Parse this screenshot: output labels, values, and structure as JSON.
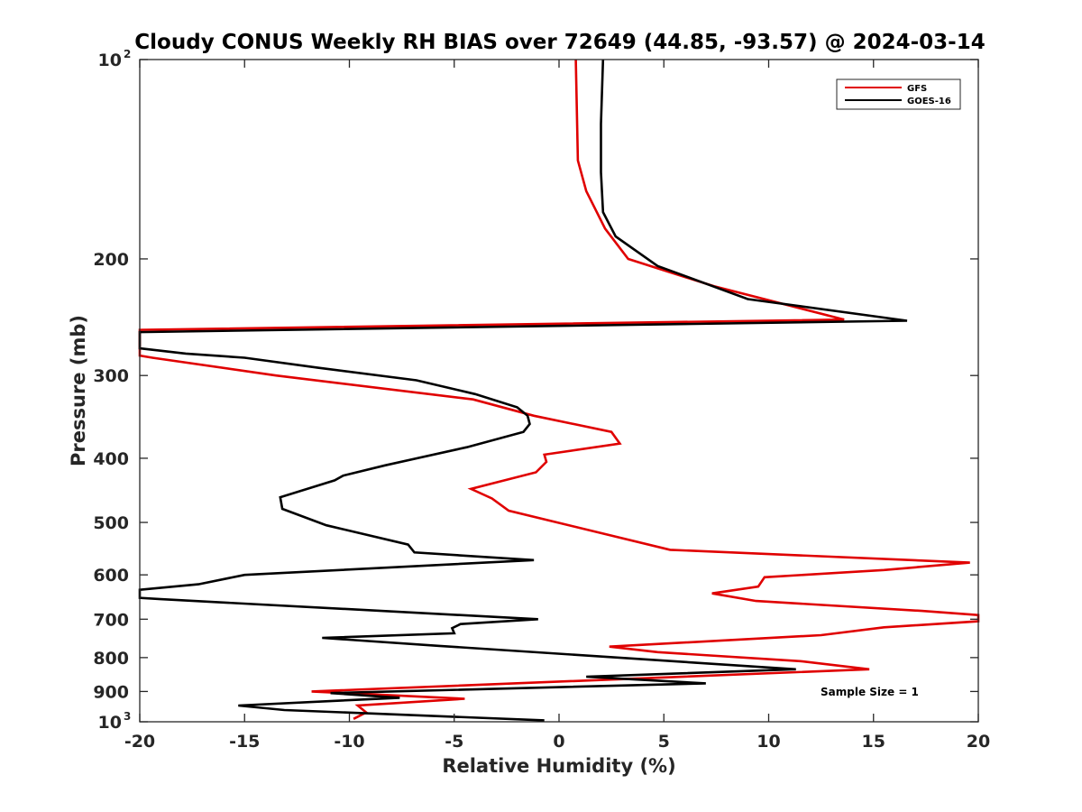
{
  "chart_data": {
    "type": "line",
    "title": "Cloudy CONUS Weekly RH BIAS over 72649 (44.85, -93.57) @ 2024-03-14",
    "xlabel": "Relative Humidity (%)",
    "ylabel": "Pressure (mb)",
    "xlim": [
      -20,
      20
    ],
    "ylim": [
      100,
      1000
    ],
    "y_scale": "log",
    "y_reversed": true,
    "grid": false,
    "legend_position": "top-right",
    "x_ticks": [
      "-20",
      "-15",
      "-10",
      "-5",
      "0",
      "5",
      "10",
      "15",
      "20"
    ],
    "y_ticks": [
      {
        "base": "10",
        "exp": "2"
      },
      {
        "base": "200",
        "exp": ""
      },
      {
        "base": "300",
        "exp": ""
      },
      {
        "base": "400",
        "exp": ""
      },
      {
        "base": "500",
        "exp": ""
      },
      {
        "base": "600",
        "exp": ""
      },
      {
        "base": "700",
        "exp": ""
      },
      {
        "base": "800",
        "exp": ""
      },
      {
        "base": "900",
        "exp": ""
      },
      {
        "base": "10",
        "exp": "3"
      }
    ],
    "annotation": "Sample Size = 1",
    "series": [
      {
        "name": "GFS",
        "color": "#e00000",
        "points": [
          [
            0.8,
            100
          ],
          [
            0.9,
            142
          ],
          [
            1.3,
            158
          ],
          [
            2.2,
            180
          ],
          [
            3.3,
            200
          ],
          [
            7.4,
            220
          ],
          [
            13.6,
            247
          ],
          [
            -20,
            256
          ],
          [
            -20,
            280
          ],
          [
            -19.4,
            282
          ],
          [
            -13.5,
            300
          ],
          [
            -4.1,
            326
          ],
          [
            -1.2,
            345
          ],
          [
            2.5,
            365
          ],
          [
            2.9,
            380
          ],
          [
            -0.7,
            395
          ],
          [
            -0.6,
            405
          ],
          [
            -1.1,
            420
          ],
          [
            -4.2,
            445
          ],
          [
            -3.2,
            460
          ],
          [
            -2.4,
            480
          ],
          [
            5.3,
            550
          ],
          [
            19.6,
            575
          ],
          [
            15.5,
            590
          ],
          [
            9.8,
            605
          ],
          [
            9.5,
            625
          ],
          [
            7.3,
            640
          ],
          [
            9.4,
            657
          ],
          [
            17.3,
            680
          ],
          [
            20,
            690
          ],
          [
            20,
            705
          ],
          [
            15.5,
            720
          ],
          [
            12.5,
            740
          ],
          [
            2.4,
            770
          ],
          [
            4.7,
            785
          ],
          [
            11.5,
            810
          ],
          [
            14.8,
            833
          ],
          [
            -11.8,
            900
          ],
          [
            -4.5,
            923
          ],
          [
            -9.6,
            945
          ],
          [
            -9.2,
            968
          ],
          [
            -9.8,
            990
          ]
        ]
      },
      {
        "name": "GOES-16",
        "color": "#000000",
        "points": [
          [
            2.1,
            100
          ],
          [
            2.0,
            125
          ],
          [
            2.0,
            148
          ],
          [
            2.1,
            170
          ],
          [
            2.7,
            185
          ],
          [
            4.7,
            205
          ],
          [
            9.0,
            230
          ],
          [
            16.6,
            248
          ],
          [
            -20,
            258
          ],
          [
            -20,
            273
          ],
          [
            -17.8,
            278
          ],
          [
            -15.0,
            282
          ],
          [
            -11.5,
            292
          ],
          [
            -6.8,
            305
          ],
          [
            -4.0,
            320
          ],
          [
            -2.0,
            335
          ],
          [
            -1.5,
            345
          ],
          [
            -1.4,
            355
          ],
          [
            -1.7,
            365
          ],
          [
            -4.4,
            385
          ],
          [
            -8.3,
            410
          ],
          [
            -10.3,
            425
          ],
          [
            -10.7,
            432
          ],
          [
            -13.3,
            458
          ],
          [
            -13.2,
            477
          ],
          [
            -11.1,
            505
          ],
          [
            -7.2,
            540
          ],
          [
            -6.9,
            555
          ],
          [
            -1.2,
            570
          ],
          [
            -15.0,
            600
          ],
          [
            -17.2,
            620
          ],
          [
            -20,
            632
          ],
          [
            -20,
            650
          ],
          [
            -19.0,
            653
          ],
          [
            -1.0,
            700
          ],
          [
            -4.7,
            712
          ],
          [
            -5.1,
            722
          ],
          [
            -5.0,
            735
          ],
          [
            -11.3,
            747
          ],
          [
            -5.7,
            768
          ],
          [
            11.3,
            833
          ],
          [
            1.3,
            855
          ],
          [
            7.0,
            875
          ],
          [
            -10.9,
            905
          ],
          [
            -7.6,
            920
          ],
          [
            -10.8,
            930
          ],
          [
            -15.3,
            945
          ],
          [
            -13.1,
            960
          ],
          [
            -0.7,
            995
          ]
        ]
      }
    ]
  }
}
